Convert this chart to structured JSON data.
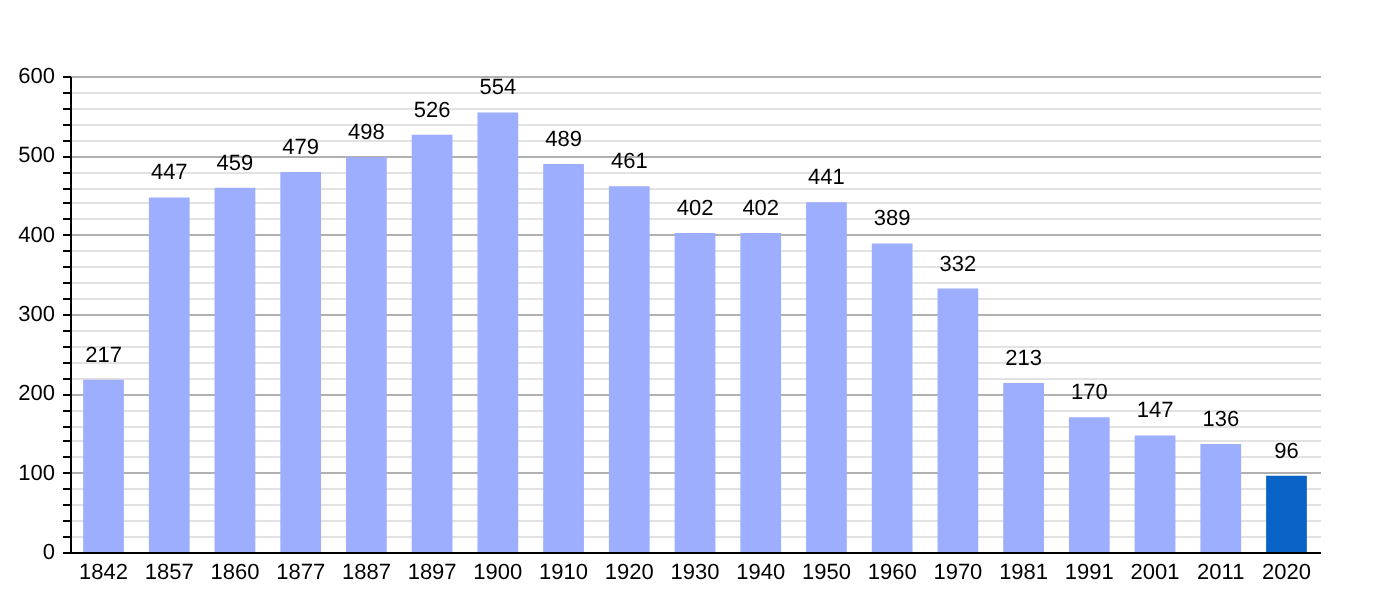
{
  "chart_data": {
    "type": "bar",
    "categories": [
      "1842",
      "1857",
      "1860",
      "1877",
      "1887",
      "1897",
      "1900",
      "1910",
      "1920",
      "1930",
      "1940",
      "1950",
      "1960",
      "1970",
      "1981",
      "1991",
      "2001",
      "2011",
      "2020"
    ],
    "values": [
      217,
      447,
      459,
      479,
      498,
      526,
      554,
      489,
      461,
      402,
      402,
      441,
      389,
      332,
      213,
      170,
      147,
      136,
      96
    ],
    "colors": [
      "#9daeff",
      "#9daeff",
      "#9daeff",
      "#9daeff",
      "#9daeff",
      "#9daeff",
      "#9daeff",
      "#9daeff",
      "#9daeff",
      "#9daeff",
      "#9daeff",
      "#9daeff",
      "#9daeff",
      "#9daeff",
      "#9daeff",
      "#9daeff",
      "#9daeff",
      "#9daeff",
      "#0a64c8"
    ],
    "ylim": [
      0,
      600
    ],
    "yticks": [
      0,
      {
        "value": 20,
        "label": null
      },
      {
        "value": 40,
        "label": null
      },
      {
        "value": 60,
        "label": null
      },
      {
        "value": 80,
        "label": null
      },
      100,
      {
        "value": 120,
        "label": null
      },
      {
        "value": 140,
        "label": null
      },
      {
        "value": 160,
        "label": null
      },
      {
        "value": 180,
        "label": null
      },
      200,
      {
        "value": 220,
        "label": null
      },
      {
        "value": 240,
        "label": null
      },
      {
        "value": 260,
        "label": null
      },
      {
        "value": 280,
        "label": null
      },
      300,
      {
        "value": 320,
        "label": null
      },
      {
        "value": 340,
        "label": null
      },
      {
        "value": 360,
        "label": null
      },
      {
        "value": 380,
        "label": null
      },
      400,
      {
        "value": 420,
        "label": null
      },
      {
        "value": 440,
        "label": null
      },
      {
        "value": 460,
        "label": null
      },
      {
        "value": 480,
        "label": null
      },
      500,
      {
        "value": 520,
        "label": null
      },
      {
        "value": 540,
        "label": null
      },
      {
        "value": 560,
        "label": null
      },
      {
        "value": 580,
        "label": null
      },
      600
    ],
    "grid": "y",
    "data_labels": true
  }
}
